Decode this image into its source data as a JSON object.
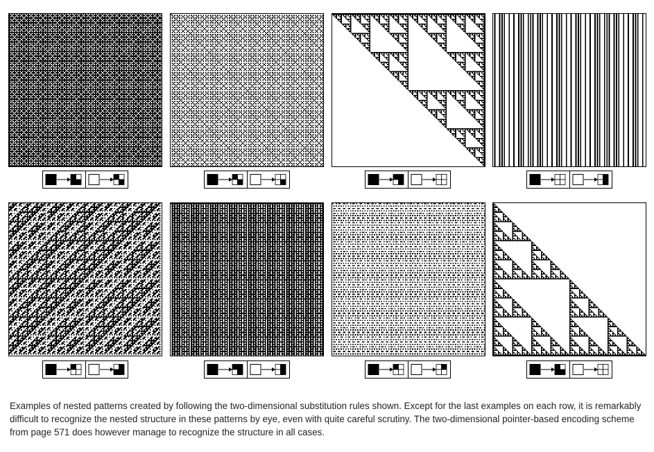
{
  "caption": "Examples of nested patterns created by following the two-dimensional substitution rules shown. Except for the last examples on each row, it is remarkably difficult to recognize the nested structure in these patterns by eye, even with quite careful scrutiny. The two-dimensional pointer-based encoding scheme from page 571 does however manage to recognize the structure in all cases.",
  "colors": {
    "ink": "#000000",
    "paper": "#ffffff",
    "caption_text": "#222222"
  },
  "examples": [
    {
      "id": "row1-col1",
      "rule_black": [
        1,
        0,
        1,
        1
      ],
      "rule_white": [
        1,
        0,
        0,
        1
      ]
    },
    {
      "id": "row1-col2",
      "rule_black": [
        1,
        0,
        0,
        1
      ],
      "rule_white": [
        0,
        0,
        0,
        1
      ]
    },
    {
      "id": "row1-col3",
      "rule_black": [
        1,
        1,
        0,
        1
      ],
      "rule_white": [
        0,
        0,
        0,
        0
      ]
    },
    {
      "id": "row1-col4",
      "rule_black": [
        0,
        0,
        0,
        0
      ],
      "rule_white": [
        0,
        1,
        0,
        1
      ]
    },
    {
      "id": "row2-col1",
      "rule_black": [
        1,
        0,
        0,
        0
      ],
      "rule_white": [
        0,
        1,
        1,
        1
      ]
    },
    {
      "id": "row2-col2",
      "rule_black": [
        1,
        1,
        0,
        1
      ],
      "rule_white": [
        0,
        1,
        0,
        1
      ]
    },
    {
      "id": "row2-col3",
      "rule_black": [
        1,
        0,
        0,
        0
      ],
      "rule_white": [
        0,
        1,
        0,
        0
      ]
    },
    {
      "id": "row2-col4",
      "rule_black": [
        1,
        0,
        1,
        1
      ],
      "rule_white": [
        0,
        0,
        0,
        0
      ]
    }
  ]
}
